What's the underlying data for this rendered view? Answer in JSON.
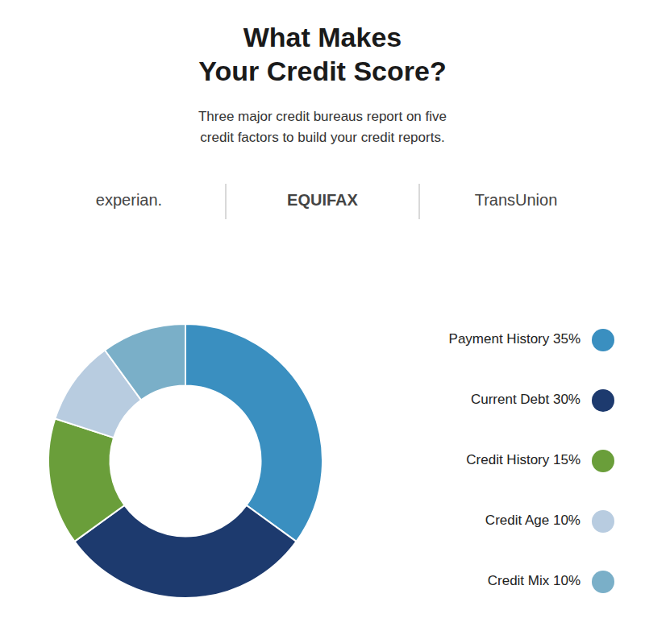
{
  "chart_data": {
    "type": "donut",
    "title": "What Makes\nYour Credit Score?",
    "subtitle": "Three major credit bureaus report on five\ncredit factors to build your credit reports.",
    "annotations": [
      "experian.",
      "EQUIFAX",
      "TransUnion"
    ],
    "categories": [
      "Payment History 35%",
      "Current Debt 30%",
      "Credit History 15%",
      "Credit Age 10%",
      "Credit Mix 10%"
    ],
    "values": [
      35,
      30,
      15,
      10,
      10
    ],
    "colors": [
      "#3A8FC0",
      "#1D3A6E",
      "#6A9E3A",
      "#B8CCE0",
      "#7AAFC8"
    ],
    "legend": "right"
  }
}
